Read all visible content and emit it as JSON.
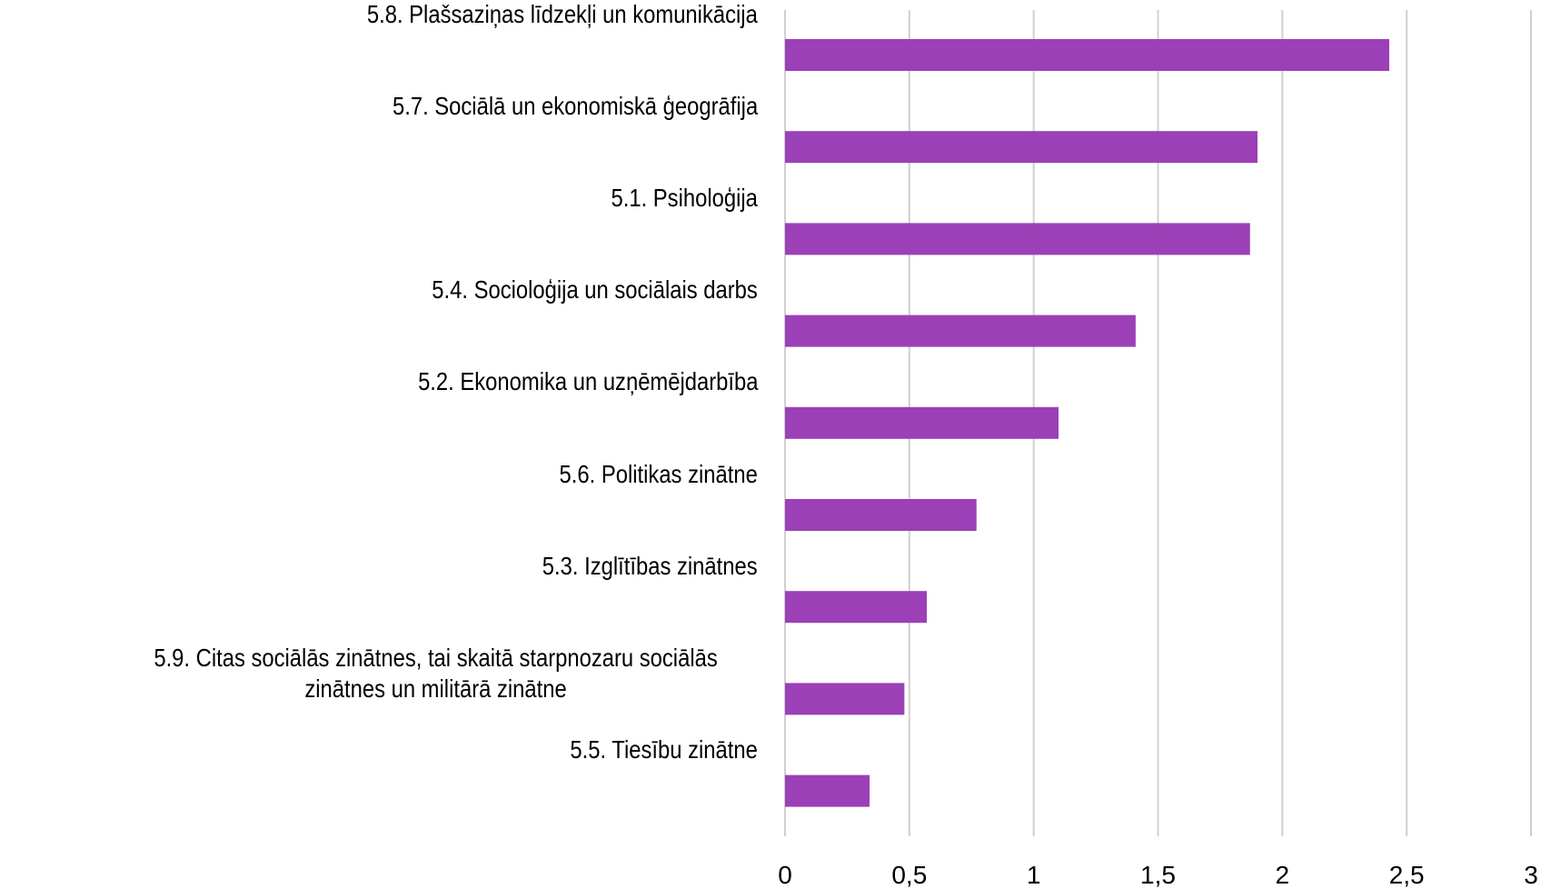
{
  "chart_data": {
    "type": "barh",
    "categories": [
      "5.8. Plašsaziņas līdzekļi un komunikācija",
      "5.7. Sociālā un ekonomiskā ģeogrāfija",
      "5.1. Psiholoģija",
      "5.4. Socioloģija un sociālais darbs",
      "5.2. Ekonomika un uzņēmējdarbība",
      "5.6. Politikas zinātne",
      "5.3. Izglītības zinātnes",
      "5.9. Citas sociālās zinātnes, tai skaitā starpnozaru sociālās zinātnes un militārā zinātne",
      "5.5. Tiesību zinātne"
    ],
    "values": [
      2.43,
      1.9,
      1.87,
      1.41,
      1.1,
      0.77,
      0.57,
      0.48,
      0.34
    ],
    "color": "#9b40b7",
    "xlim": [
      0,
      3
    ],
    "xticks": [
      0,
      {
        "value": 0.5,
        "label": "0,5"
      },
      1,
      {
        "value": 1.5,
        "label": "1,5"
      },
      2,
      {
        "value": 2.5,
        "label": "2,5"
      },
      3
    ],
    "grid": true
  }
}
